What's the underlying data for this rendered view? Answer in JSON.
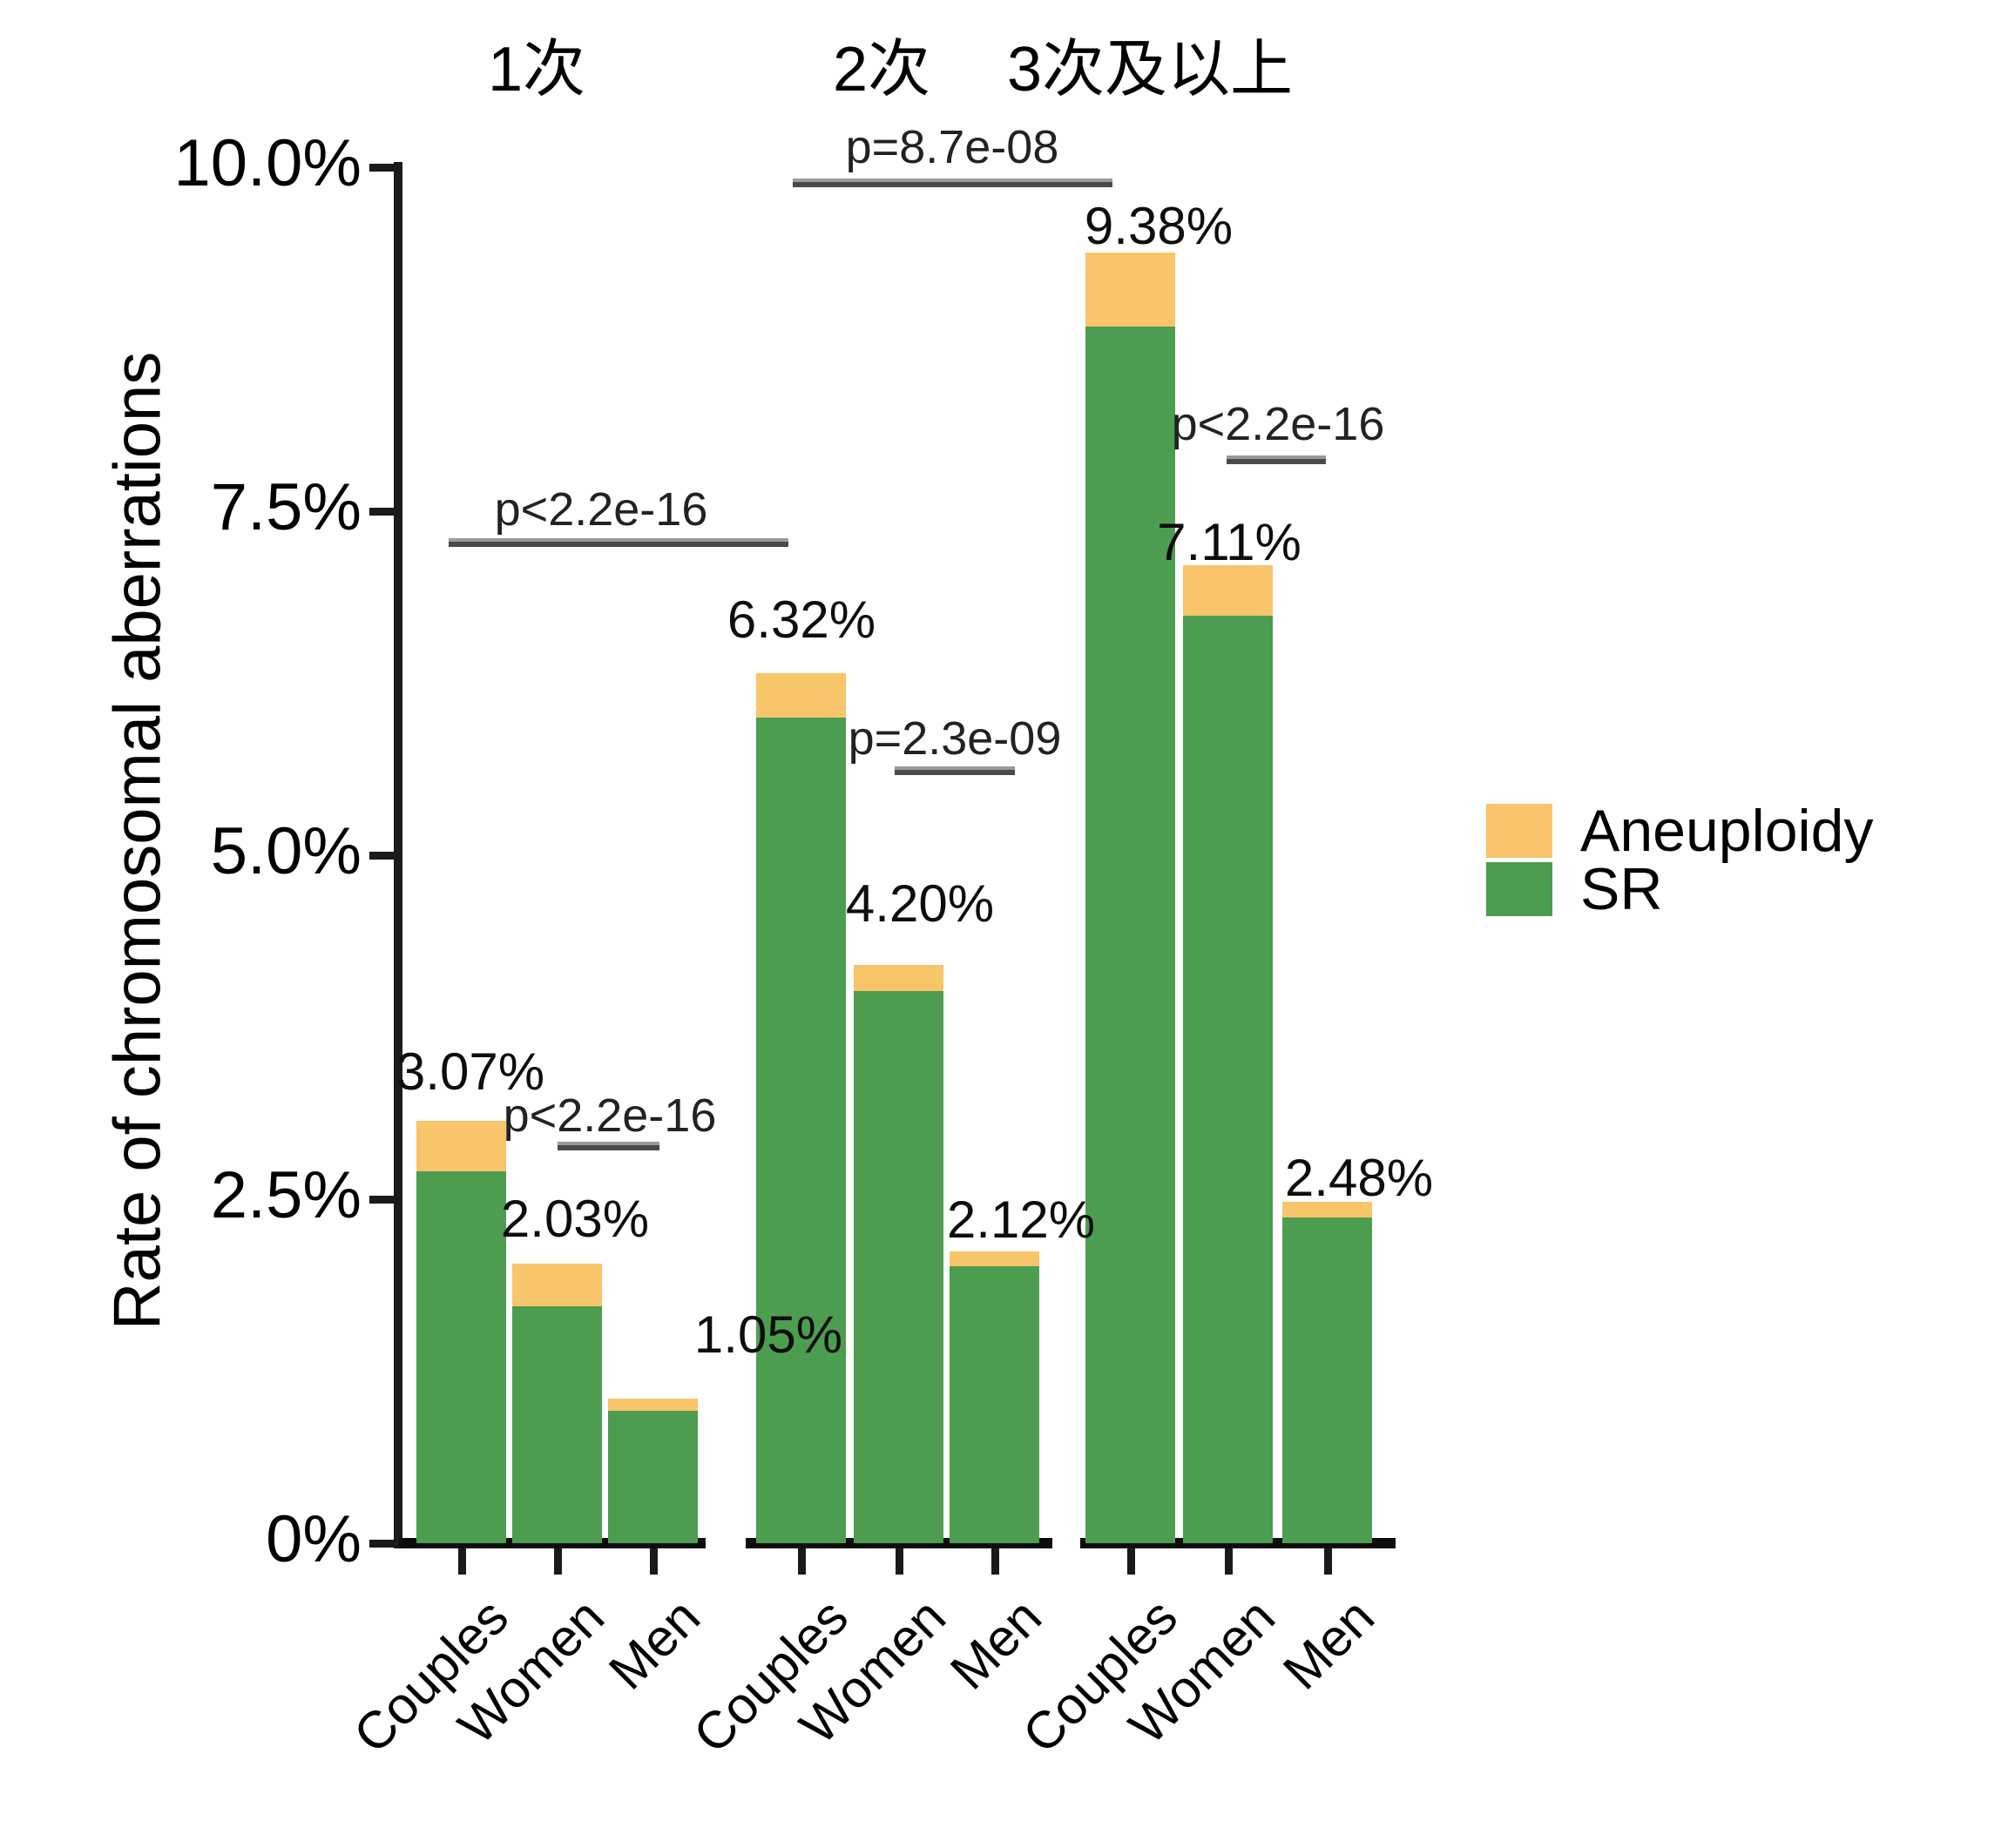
{
  "y_axis": {
    "title": "Rate of chromosomal aberrations",
    "ticks": [
      {
        "label": "10.0%",
        "value": 10
      },
      {
        "label": "7.5%",
        "value": 7.5
      },
      {
        "label": "5.0%",
        "value": 5
      },
      {
        "label": "2.5%",
        "value": 2.5
      },
      {
        "label": "0%",
        "value": 0
      }
    ]
  },
  "legend": {
    "items": [
      {
        "label": "Aneuploidy",
        "color": "#F8C56B"
      },
      {
        "label": "SR",
        "color": "#4D9D50"
      }
    ]
  },
  "colors": {
    "aneuploidy": "#F8C56B",
    "sr": "#4D9D50",
    "axis": "#1a1a1a"
  },
  "chart_data": {
    "type": "bar",
    "stacked": true,
    "title": "",
    "xlabel": "",
    "ylabel": "Rate of chromosomal aberrations",
    "ylim": [
      0,
      10
    ],
    "grid": false,
    "legend_position": "right",
    "group_headers": [
      "1次",
      "2次",
      "3次及以上"
    ],
    "categories": [
      "Couples",
      "Women",
      "Men"
    ],
    "series_names": [
      "SR",
      "Aneuploidy"
    ],
    "groups": [
      {
        "header": "1次",
        "bars": [
          {
            "category": "Couples",
            "total": 3.07,
            "total_label": "3.07%",
            "SR": 2.7,
            "Aneuploidy": 0.37
          },
          {
            "category": "Women",
            "total": 2.03,
            "total_label": "2.03%",
            "SR": 1.72,
            "Aneuploidy": 0.31
          },
          {
            "category": "Men",
            "total": 1.05,
            "total_label": "1.05%",
            "SR": 0.96,
            "Aneuploidy": 0.09
          }
        ]
      },
      {
        "header": "2次",
        "bars": [
          {
            "category": "Couples",
            "total": 6.32,
            "total_label": "6.32%",
            "SR": 6.0,
            "Aneuploidy": 0.32
          },
          {
            "category": "Women",
            "total": 4.2,
            "total_label": "4.20%",
            "SR": 4.01,
            "Aneuploidy": 0.19
          },
          {
            "category": "Men",
            "total": 2.12,
            "total_label": "2.12%",
            "SR": 2.01,
            "Aneuploidy": 0.11
          }
        ]
      },
      {
        "header": "3次及以上",
        "bars": [
          {
            "category": "Couples",
            "total": 9.38,
            "total_label": "9.38%",
            "SR": 8.84,
            "Aneuploidy": 0.54
          },
          {
            "category": "Women",
            "total": 7.11,
            "total_label": "7.11%",
            "SR": 6.74,
            "Aneuploidy": 0.37
          },
          {
            "category": "Men",
            "total": 2.48,
            "total_label": "2.48%",
            "SR": 2.37,
            "Aneuploidy": 0.11
          }
        ]
      }
    ],
    "annotations": [
      {
        "text": "p<2.2e-16"
      },
      {
        "text": "p=8.7e-08"
      },
      {
        "text": "p<2.2e-16"
      },
      {
        "text": "p=2.3e-09"
      },
      {
        "text": "p<2.2e-16"
      }
    ]
  }
}
